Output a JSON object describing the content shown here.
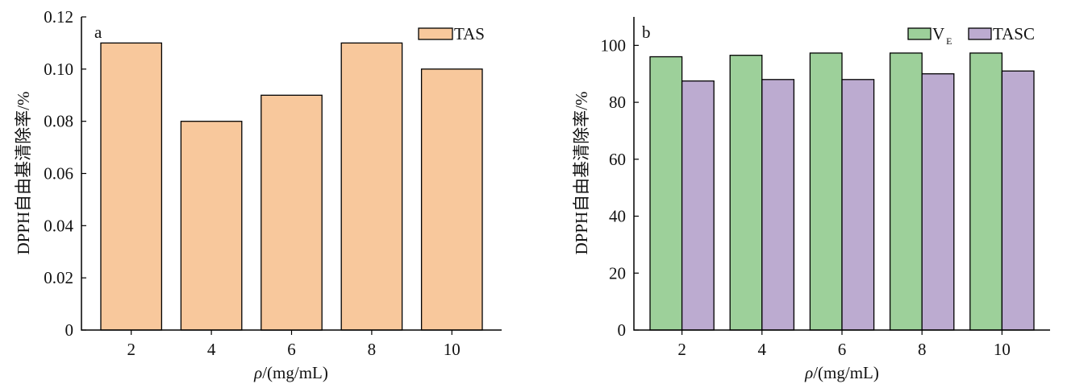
{
  "chart_data": [
    {
      "type": "bar",
      "panel_label": "a",
      "categories": [
        "2",
        "4",
        "6",
        "8",
        "10"
      ],
      "series": [
        {
          "name": "TAS",
          "values": [
            0.11,
            0.08,
            0.09,
            0.11,
            0.1
          ],
          "color": "#f8c89c"
        }
      ],
      "ylim": [
        0,
        0.12
      ],
      "yticks": [
        "0",
        "0.02",
        "0.04",
        "0.06",
        "0.08",
        "0.10",
        "0.12"
      ],
      "ytick_values": [
        0,
        0.02,
        0.04,
        0.06,
        0.08,
        0.1,
        0.12
      ],
      "xlabel_prefix": "ρ",
      "xlabel_suffix": "/(mg/mL)",
      "ylabel": "DPPH自由基清除率/%",
      "legend_position": "top-right"
    },
    {
      "type": "bar",
      "panel_label": "b",
      "categories": [
        "2",
        "4",
        "6",
        "8",
        "10"
      ],
      "series": [
        {
          "name": "V",
          "name_sub": "E",
          "values": [
            96,
            96.5,
            97.3,
            97.3,
            97.3
          ],
          "color": "#9dd09a"
        },
        {
          "name": "TASC",
          "values": [
            87.5,
            88,
            88,
            90,
            91
          ],
          "color": "#bcabd0"
        }
      ],
      "ylim": [
        0,
        110
      ],
      "yticks": [
        "0",
        "20",
        "40",
        "60",
        "80",
        "100"
      ],
      "ytick_values": [
        0,
        20,
        40,
        60,
        80,
        100
      ],
      "xlabel_prefix": "ρ",
      "xlabel_suffix": "/(mg/mL)",
      "ylabel": "DPPH自由基清除率/%",
      "legend_position": "top-right"
    }
  ]
}
